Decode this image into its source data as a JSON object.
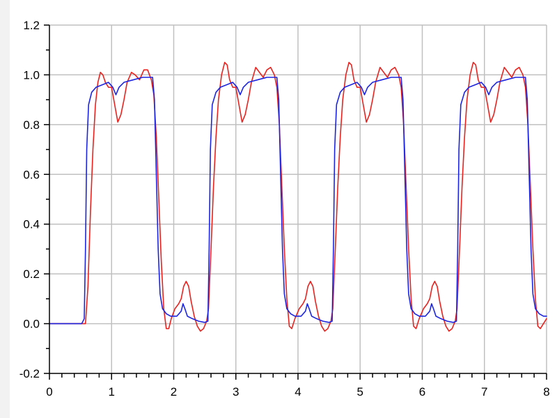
{
  "colors": {
    "background": "#ffffff",
    "frame_left": "#f2f2f2",
    "axis": "#000000",
    "grid": "#c0c0c0",
    "series_red": "#e8231f",
    "series_blue": "#1c24e0"
  },
  "chart_data": {
    "type": "line",
    "title": "",
    "xlabel": "",
    "ylabel": "",
    "xlim": [
      0,
      8
    ],
    "ylim": [
      -0.2,
      1.2
    ],
    "grid": true,
    "legend": "none",
    "x_ticks": [
      0,
      1,
      2,
      3,
      4,
      5,
      6,
      7,
      8
    ],
    "x_tick_labels": [
      "0",
      "1",
      "2",
      "3",
      "4",
      "5",
      "6",
      "7",
      "8"
    ],
    "y_ticks": [
      -0.2,
      0.0,
      0.2,
      0.4,
      0.6,
      0.8,
      1.0,
      1.2
    ],
    "y_tick_labels": [
      "-0.2",
      "0.0",
      "0.2",
      "0.4",
      "0.6",
      "0.8",
      "1.0",
      "1.2"
    ],
    "series": [
      {
        "color": "#e8231f",
        "points": [
          [
            0.0,
            0.0
          ],
          [
            0.5,
            0.0
          ],
          [
            0.58,
            0.0
          ],
          [
            0.62,
            0.15
          ],
          [
            0.66,
            0.45
          ],
          [
            0.7,
            0.7
          ],
          [
            0.74,
            0.88
          ],
          [
            0.78,
            0.97
          ],
          [
            0.82,
            1.01
          ],
          [
            0.86,
            1.0
          ],
          [
            0.9,
            0.97
          ],
          [
            0.95,
            0.95
          ],
          [
            1.0,
            0.95
          ],
          [
            1.05,
            0.88
          ],
          [
            1.1,
            0.81
          ],
          [
            1.15,
            0.84
          ],
          [
            1.2,
            0.9
          ],
          [
            1.25,
            0.97
          ],
          [
            1.32,
            1.01
          ],
          [
            1.38,
            1.0
          ],
          [
            1.45,
            0.98
          ],
          [
            1.52,
            1.02
          ],
          [
            1.58,
            1.02
          ],
          [
            1.64,
            0.98
          ],
          [
            1.68,
            0.92
          ],
          [
            1.72,
            0.75
          ],
          [
            1.76,
            0.5
          ],
          [
            1.8,
            0.25
          ],
          [
            1.84,
            0.06
          ],
          [
            1.88,
            -0.02
          ],
          [
            1.92,
            -0.02
          ],
          [
            1.96,
            0.02
          ],
          [
            2.02,
            0.06
          ],
          [
            2.08,
            0.08
          ],
          [
            2.12,
            0.1
          ],
          [
            2.16,
            0.15
          ],
          [
            2.2,
            0.17
          ],
          [
            2.24,
            0.15
          ],
          [
            2.28,
            0.09
          ],
          [
            2.33,
            0.03
          ],
          [
            2.38,
            -0.01
          ],
          [
            2.43,
            -0.03
          ],
          [
            2.48,
            -0.02
          ],
          [
            2.53,
            0.01
          ],
          [
            2.56,
            0.06
          ],
          [
            2.6,
            0.3
          ],
          [
            2.64,
            0.55
          ],
          [
            2.68,
            0.75
          ],
          [
            2.72,
            0.9
          ],
          [
            2.77,
            1.0
          ],
          [
            2.82,
            1.05
          ],
          [
            2.86,
            1.04
          ],
          [
            2.9,
            0.98
          ],
          [
            2.95,
            0.95
          ],
          [
            3.0,
            0.95
          ],
          [
            3.05,
            0.88
          ],
          [
            3.1,
            0.81
          ],
          [
            3.15,
            0.84
          ],
          [
            3.2,
            0.9
          ],
          [
            3.25,
            0.97
          ],
          [
            3.32,
            1.03
          ],
          [
            3.38,
            1.01
          ],
          [
            3.44,
            0.99
          ],
          [
            3.5,
            1.02
          ],
          [
            3.56,
            1.03
          ],
          [
            3.62,
            1.0
          ],
          [
            3.66,
            0.95
          ],
          [
            3.7,
            0.8
          ],
          [
            3.74,
            0.55
          ],
          [
            3.78,
            0.3
          ],
          [
            3.82,
            0.1
          ],
          [
            3.86,
            -0.01
          ],
          [
            3.9,
            -0.02
          ],
          [
            3.95,
            0.02
          ],
          [
            4.02,
            0.06
          ],
          [
            4.08,
            0.08
          ],
          [
            4.12,
            0.1
          ],
          [
            4.16,
            0.15
          ],
          [
            4.2,
            0.17
          ],
          [
            4.24,
            0.15
          ],
          [
            4.28,
            0.09
          ],
          [
            4.33,
            0.03
          ],
          [
            4.38,
            -0.01
          ],
          [
            4.43,
            -0.03
          ],
          [
            4.48,
            -0.02
          ],
          [
            4.53,
            0.01
          ],
          [
            4.56,
            0.06
          ],
          [
            4.6,
            0.3
          ],
          [
            4.64,
            0.55
          ],
          [
            4.68,
            0.75
          ],
          [
            4.72,
            0.9
          ],
          [
            4.77,
            1.0
          ],
          [
            4.82,
            1.05
          ],
          [
            4.86,
            1.04
          ],
          [
            4.9,
            0.98
          ],
          [
            4.95,
            0.95
          ],
          [
            5.0,
            0.95
          ],
          [
            5.05,
            0.88
          ],
          [
            5.1,
            0.81
          ],
          [
            5.15,
            0.84
          ],
          [
            5.2,
            0.9
          ],
          [
            5.25,
            0.97
          ],
          [
            5.32,
            1.03
          ],
          [
            5.38,
            1.01
          ],
          [
            5.44,
            0.99
          ],
          [
            5.5,
            1.02
          ],
          [
            5.56,
            1.03
          ],
          [
            5.62,
            1.0
          ],
          [
            5.66,
            0.95
          ],
          [
            5.7,
            0.8
          ],
          [
            5.74,
            0.55
          ],
          [
            5.78,
            0.3
          ],
          [
            5.82,
            0.1
          ],
          [
            5.86,
            -0.01
          ],
          [
            5.9,
            -0.02
          ],
          [
            5.95,
            0.02
          ],
          [
            6.02,
            0.06
          ],
          [
            6.08,
            0.08
          ],
          [
            6.12,
            0.1
          ],
          [
            6.16,
            0.15
          ],
          [
            6.2,
            0.17
          ],
          [
            6.24,
            0.15
          ],
          [
            6.28,
            0.09
          ],
          [
            6.33,
            0.03
          ],
          [
            6.38,
            -0.01
          ],
          [
            6.43,
            -0.03
          ],
          [
            6.48,
            -0.02
          ],
          [
            6.53,
            0.01
          ],
          [
            6.56,
            0.06
          ],
          [
            6.6,
            0.3
          ],
          [
            6.64,
            0.55
          ],
          [
            6.68,
            0.75
          ],
          [
            6.72,
            0.9
          ],
          [
            6.77,
            1.0
          ],
          [
            6.82,
            1.05
          ],
          [
            6.86,
            1.04
          ],
          [
            6.9,
            0.98
          ],
          [
            6.95,
            0.95
          ],
          [
            7.0,
            0.95
          ],
          [
            7.05,
            0.88
          ],
          [
            7.1,
            0.81
          ],
          [
            7.15,
            0.84
          ],
          [
            7.2,
            0.9
          ],
          [
            7.25,
            0.97
          ],
          [
            7.32,
            1.03
          ],
          [
            7.38,
            1.01
          ],
          [
            7.44,
            0.99
          ],
          [
            7.5,
            1.02
          ],
          [
            7.56,
            1.03
          ],
          [
            7.62,
            1.0
          ],
          [
            7.66,
            0.95
          ],
          [
            7.7,
            0.8
          ],
          [
            7.74,
            0.55
          ],
          [
            7.78,
            0.3
          ],
          [
            7.82,
            0.1
          ],
          [
            7.86,
            -0.01
          ],
          [
            7.9,
            -0.02
          ],
          [
            7.95,
            0.0
          ],
          [
            8.0,
            0.02
          ]
        ]
      },
      {
        "color": "#1c24e0",
        "points": [
          [
            0.0,
            0.0
          ],
          [
            0.52,
            0.0
          ],
          [
            0.56,
            0.02
          ],
          [
            0.58,
            0.3
          ],
          [
            0.6,
            0.7
          ],
          [
            0.63,
            0.88
          ],
          [
            0.68,
            0.93
          ],
          [
            0.75,
            0.95
          ],
          [
            0.85,
            0.96
          ],
          [
            0.95,
            0.97
          ],
          [
            1.02,
            0.95
          ],
          [
            1.07,
            0.92
          ],
          [
            1.12,
            0.95
          ],
          [
            1.2,
            0.97
          ],
          [
            1.35,
            0.98
          ],
          [
            1.5,
            0.99
          ],
          [
            1.6,
            0.99
          ],
          [
            1.66,
            0.99
          ],
          [
            1.69,
            0.9
          ],
          [
            1.72,
            0.6
          ],
          [
            1.75,
            0.3
          ],
          [
            1.78,
            0.12
          ],
          [
            1.82,
            0.06
          ],
          [
            1.88,
            0.04
          ],
          [
            1.95,
            0.03
          ],
          [
            2.05,
            0.03
          ],
          [
            2.12,
            0.05
          ],
          [
            2.15,
            0.08
          ],
          [
            2.18,
            0.06
          ],
          [
            2.22,
            0.03
          ],
          [
            2.3,
            0.02
          ],
          [
            2.4,
            0.01
          ],
          [
            2.5,
            0.005
          ],
          [
            2.55,
            0.01
          ],
          [
            2.57,
            0.3
          ],
          [
            2.59,
            0.7
          ],
          [
            2.62,
            0.88
          ],
          [
            2.68,
            0.93
          ],
          [
            2.75,
            0.95
          ],
          [
            2.85,
            0.96
          ],
          [
            2.95,
            0.97
          ],
          [
            3.02,
            0.95
          ],
          [
            3.07,
            0.92
          ],
          [
            3.12,
            0.95
          ],
          [
            3.2,
            0.97
          ],
          [
            3.35,
            0.98
          ],
          [
            3.5,
            0.99
          ],
          [
            3.6,
            0.99
          ],
          [
            3.66,
            0.99
          ],
          [
            3.69,
            0.9
          ],
          [
            3.72,
            0.6
          ],
          [
            3.75,
            0.3
          ],
          [
            3.78,
            0.12
          ],
          [
            3.82,
            0.06
          ],
          [
            3.88,
            0.04
          ],
          [
            3.95,
            0.03
          ],
          [
            4.05,
            0.03
          ],
          [
            4.12,
            0.05
          ],
          [
            4.15,
            0.08
          ],
          [
            4.18,
            0.06
          ],
          [
            4.22,
            0.03
          ],
          [
            4.3,
            0.02
          ],
          [
            4.4,
            0.01
          ],
          [
            4.5,
            0.005
          ],
          [
            4.55,
            0.01
          ],
          [
            4.57,
            0.3
          ],
          [
            4.59,
            0.7
          ],
          [
            4.62,
            0.88
          ],
          [
            4.68,
            0.93
          ],
          [
            4.75,
            0.95
          ],
          [
            4.85,
            0.96
          ],
          [
            4.95,
            0.97
          ],
          [
            5.02,
            0.95
          ],
          [
            5.07,
            0.92
          ],
          [
            5.12,
            0.95
          ],
          [
            5.2,
            0.97
          ],
          [
            5.35,
            0.98
          ],
          [
            5.5,
            0.99
          ],
          [
            5.6,
            0.99
          ],
          [
            5.66,
            0.99
          ],
          [
            5.69,
            0.9
          ],
          [
            5.72,
            0.6
          ],
          [
            5.75,
            0.3
          ],
          [
            5.78,
            0.12
          ],
          [
            5.82,
            0.06
          ],
          [
            5.88,
            0.04
          ],
          [
            5.95,
            0.03
          ],
          [
            6.05,
            0.03
          ],
          [
            6.12,
            0.05
          ],
          [
            6.15,
            0.08
          ],
          [
            6.18,
            0.06
          ],
          [
            6.22,
            0.03
          ],
          [
            6.3,
            0.02
          ],
          [
            6.4,
            0.01
          ],
          [
            6.5,
            0.005
          ],
          [
            6.55,
            0.01
          ],
          [
            6.57,
            0.3
          ],
          [
            6.59,
            0.7
          ],
          [
            6.62,
            0.88
          ],
          [
            6.68,
            0.93
          ],
          [
            6.75,
            0.95
          ],
          [
            6.85,
            0.96
          ],
          [
            6.95,
            0.97
          ],
          [
            7.02,
            0.95
          ],
          [
            7.07,
            0.92
          ],
          [
            7.12,
            0.95
          ],
          [
            7.2,
            0.97
          ],
          [
            7.35,
            0.98
          ],
          [
            7.5,
            0.99
          ],
          [
            7.6,
            0.99
          ],
          [
            7.66,
            0.99
          ],
          [
            7.69,
            0.9
          ],
          [
            7.72,
            0.6
          ],
          [
            7.75,
            0.3
          ],
          [
            7.78,
            0.12
          ],
          [
            7.82,
            0.06
          ],
          [
            7.88,
            0.04
          ],
          [
            7.95,
            0.03
          ],
          [
            8.0,
            0.03
          ]
        ]
      }
    ]
  }
}
